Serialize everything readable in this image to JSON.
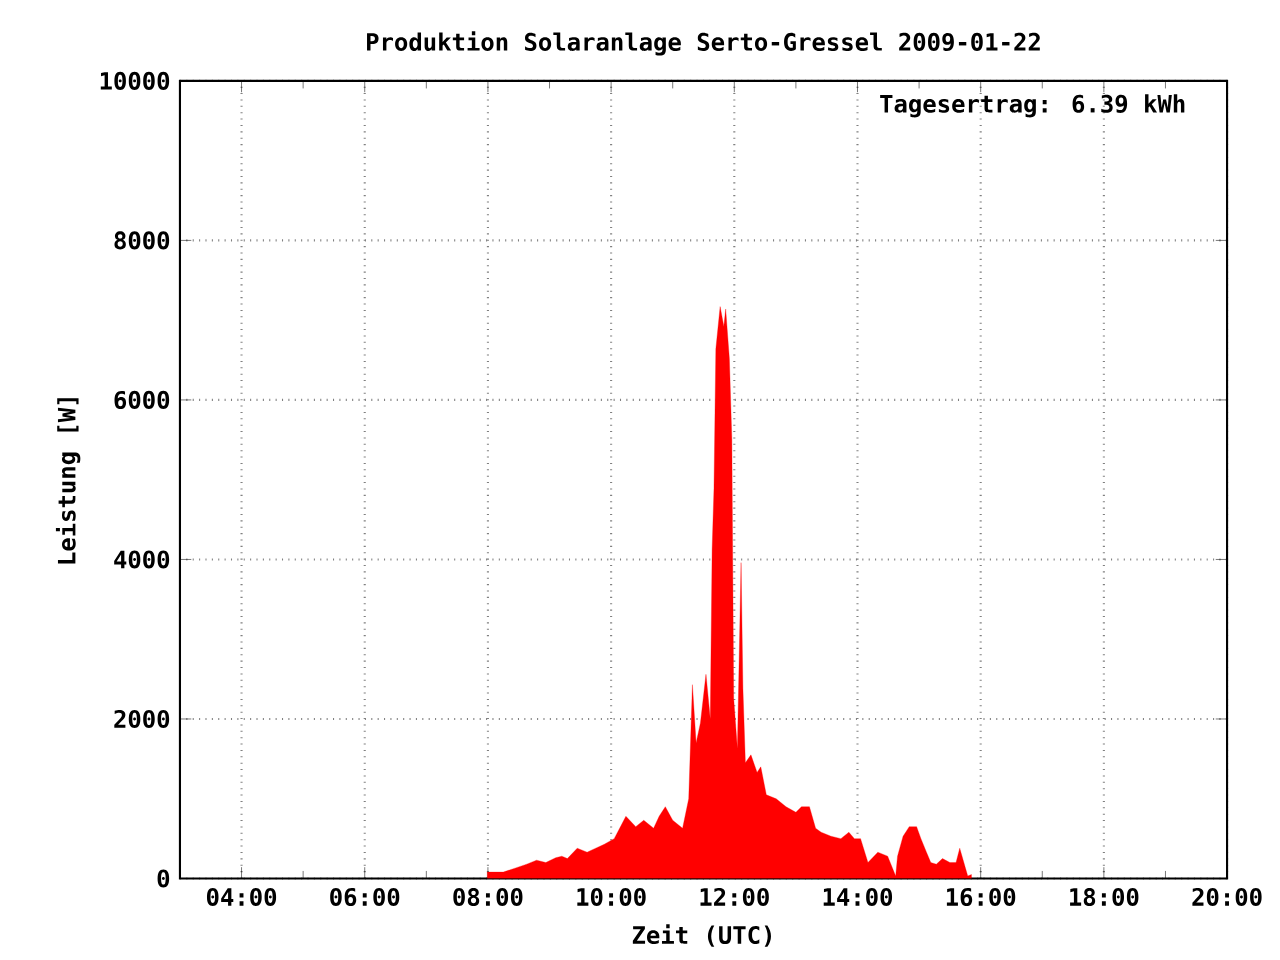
{
  "chart_data": {
    "type": "area",
    "title": "Produktion Solaranlage Serto-Gressel 2009-01-22",
    "xlabel": "Zeit (UTC)",
    "ylabel": "Leistung [W]",
    "annotations": [
      "Tagesertrag: 6.39 kWh"
    ],
    "series": [
      {
        "color": "#ff0000",
        "x": [
          7.99,
          8.25,
          8.44,
          8.63,
          8.79,
          8.94,
          9.1,
          9.2,
          9.29,
          9.45,
          9.61,
          9.89,
          10.05,
          10.24,
          10.4,
          10.53,
          10.69,
          10.78,
          10.88,
          11.0,
          11.16,
          11.26,
          11.32,
          11.38,
          11.45,
          11.54,
          11.61,
          11.64,
          11.67,
          11.7,
          11.77,
          11.83,
          11.86,
          11.92,
          11.96,
          11.99,
          12.05,
          12.11,
          12.14,
          12.18,
          12.27,
          12.37,
          12.43,
          12.52,
          12.68,
          12.84,
          13.0,
          13.09,
          13.22,
          13.32,
          13.41,
          13.57,
          13.73,
          13.86,
          13.95,
          14.05,
          14.17,
          14.33,
          14.49,
          14.62,
          14.65,
          14.74,
          14.84,
          14.96,
          15.03,
          15.12,
          15.19,
          15.28,
          15.38,
          15.5,
          15.6,
          15.66,
          15.79,
          15.85
        ],
        "values": [
          80,
          80,
          130,
          180,
          230,
          200,
          260,
          280,
          250,
          380,
          330,
          430,
          500,
          780,
          650,
          730,
          630,
          780,
          900,
          730,
          630,
          1000,
          2430,
          1700,
          1950,
          2560,
          2000,
          4130,
          4890,
          6640,
          7170,
          6920,
          7140,
          6520,
          5510,
          2260,
          1630,
          3960,
          2380,
          1450,
          1550,
          1330,
          1400,
          1050,
          1000,
          900,
          830,
          900,
          900,
          630,
          580,
          530,
          500,
          580,
          500,
          500,
          200,
          330,
          280,
          30,
          280,
          530,
          650,
          650,
          500,
          330,
          200,
          180,
          250,
          200,
          200,
          380,
          30,
          50
        ]
      }
    ],
    "xlim": [
      3,
      20
    ],
    "xticks": [
      {
        "value": 4,
        "label": "04:00"
      },
      {
        "value": 6,
        "label": "06:00"
      },
      {
        "value": 8,
        "label": "08:00"
      },
      {
        "value": 10,
        "label": "10:00"
      },
      {
        "value": 12,
        "label": "12:00"
      },
      {
        "value": 14,
        "label": "14:00"
      },
      {
        "value": 16,
        "label": "16:00"
      },
      {
        "value": 18,
        "label": "18:00"
      },
      {
        "value": 20,
        "label": "20:00"
      }
    ],
    "ylim": [
      0,
      10000
    ],
    "yticks": [
      0,
      2000,
      4000,
      6000,
      8000,
      10000
    ],
    "grid": true,
    "legend": false
  }
}
